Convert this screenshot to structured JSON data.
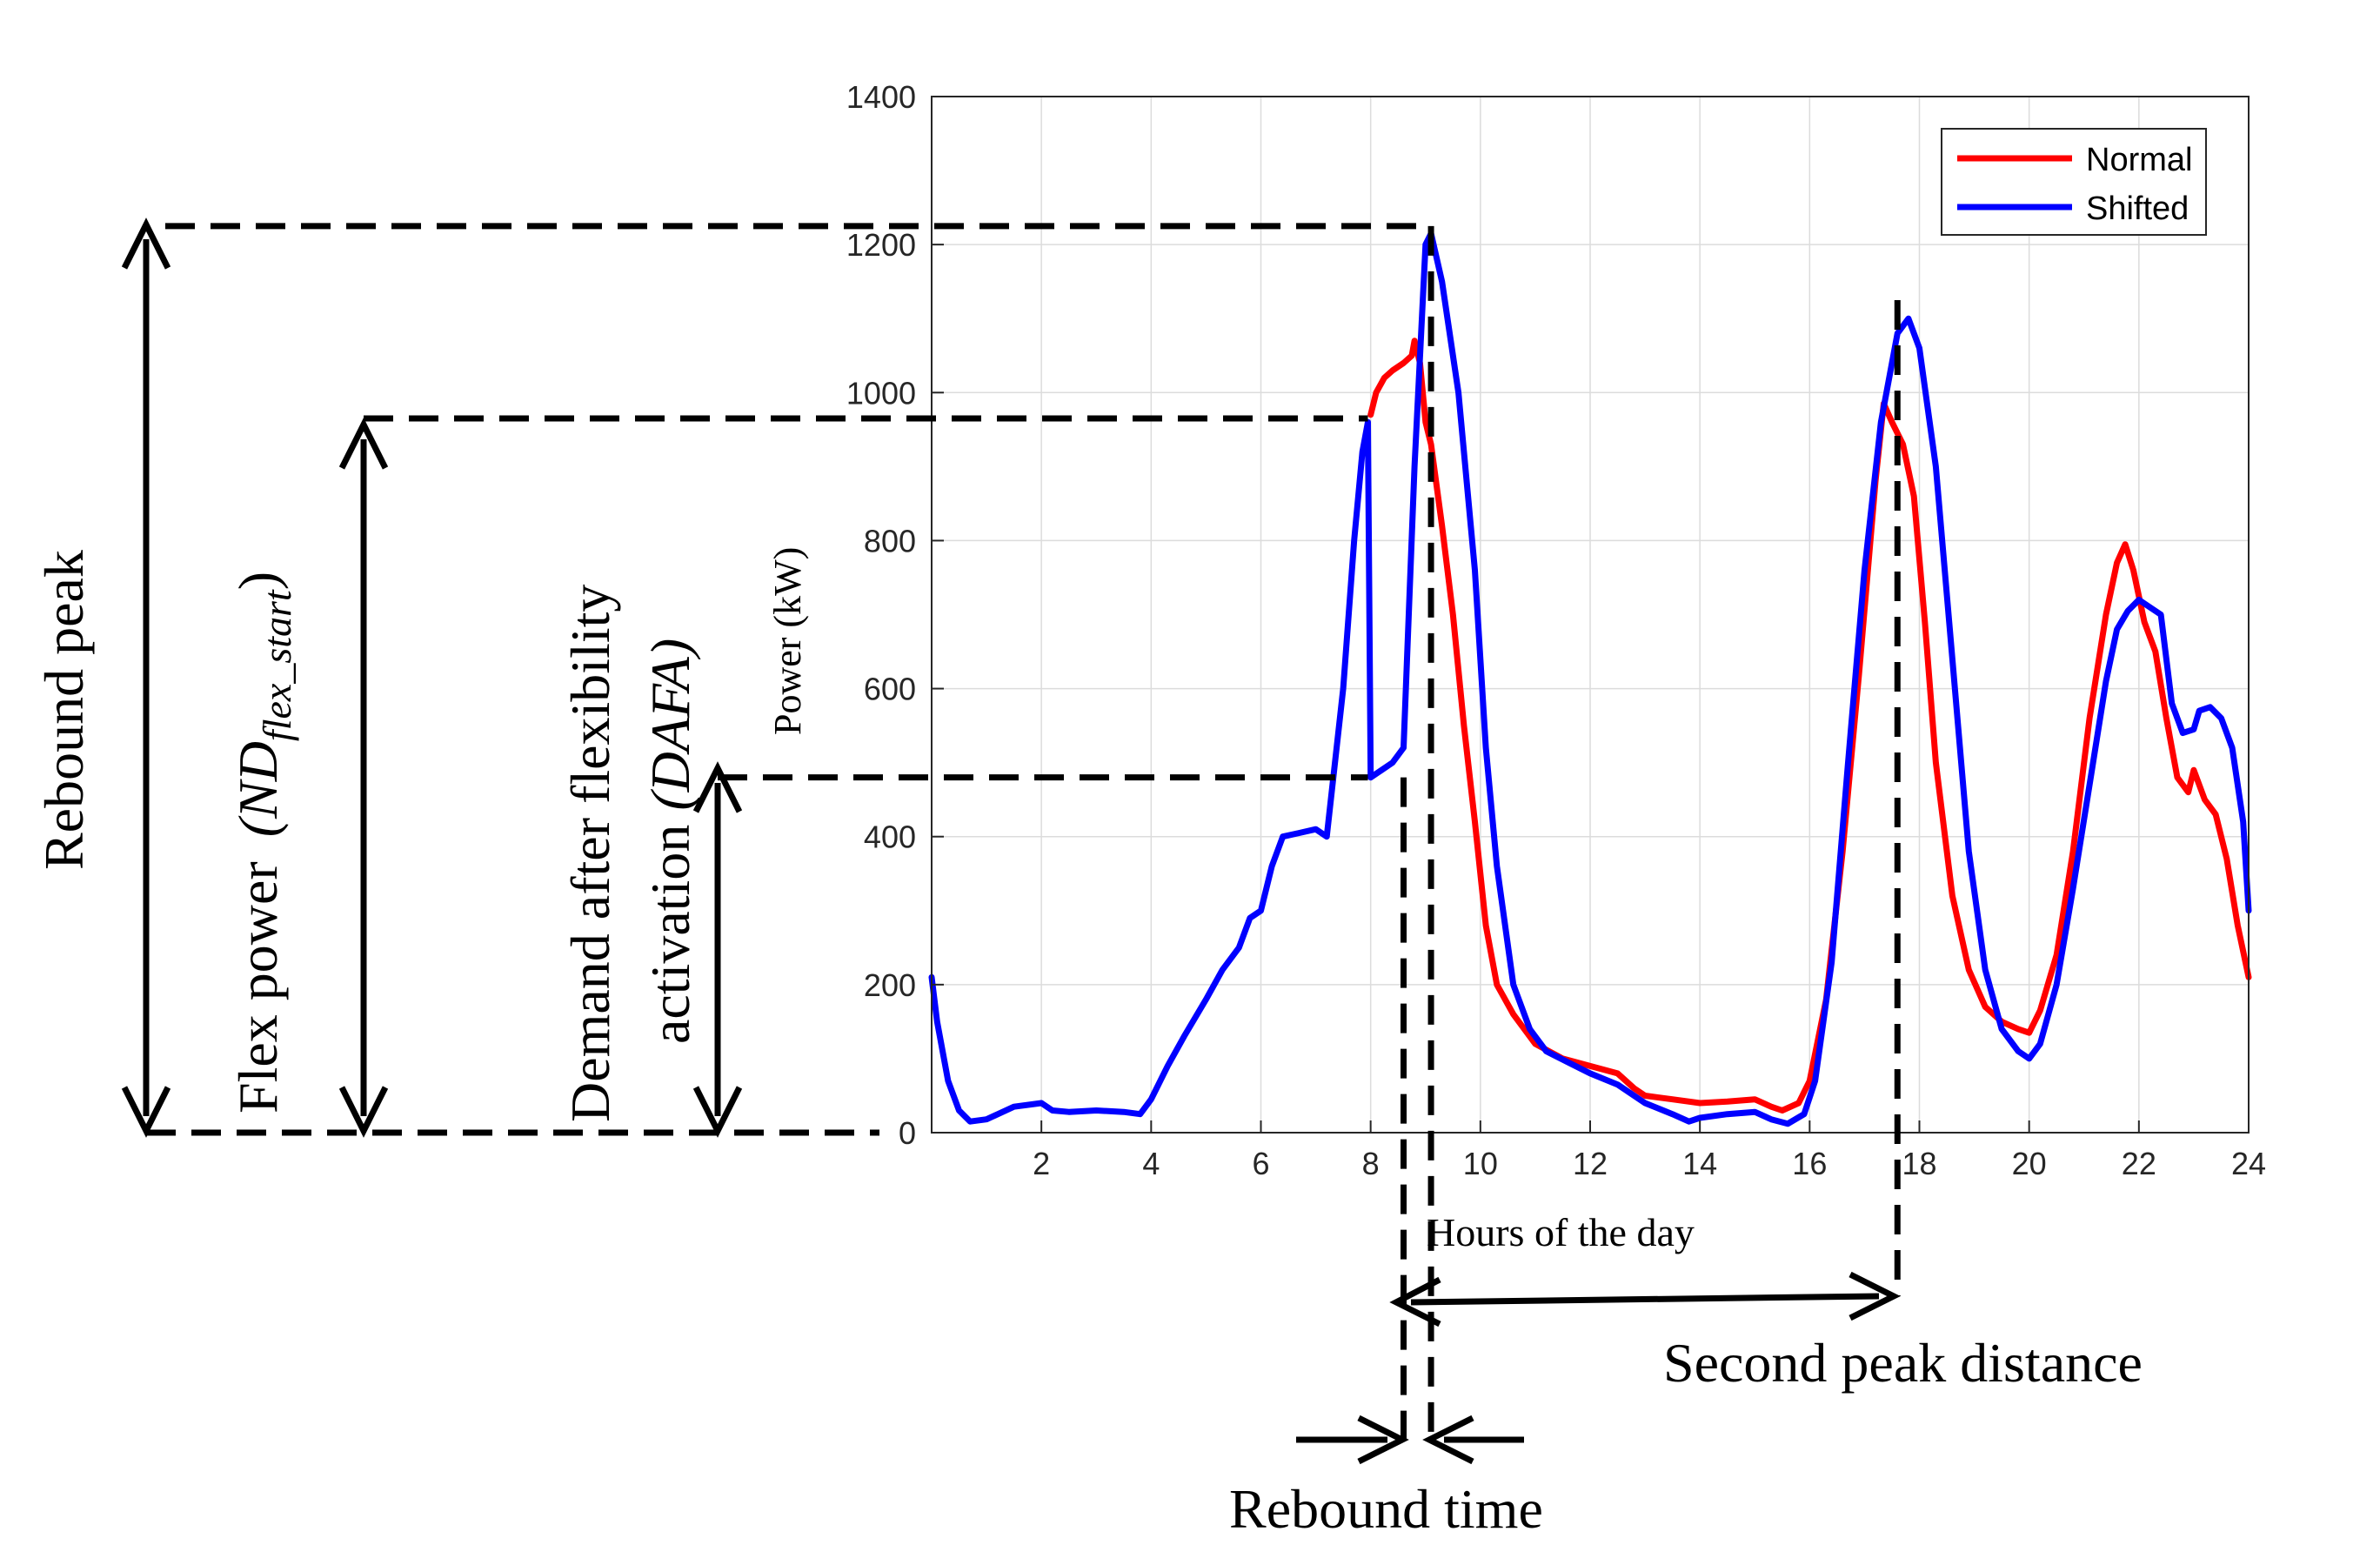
{
  "chart_data": {
    "type": "line",
    "xlabel": "Hours of the day",
    "ylabel": "Power (kW)",
    "xlim": [
      0,
      24
    ],
    "ylim": [
      0,
      1400
    ],
    "xticks": [
      2,
      4,
      6,
      8,
      10,
      12,
      14,
      16,
      18,
      20,
      22,
      24
    ],
    "yticks": [
      0,
      200,
      400,
      600,
      800,
      1000,
      1200,
      1400
    ],
    "grid": true,
    "legend_position": "top-right",
    "series": [
      {
        "name": "Normal",
        "color": "#ff0000",
        "points": [
          [
            8.0,
            970
          ],
          [
            8.1,
            1000
          ],
          [
            8.25,
            1020
          ],
          [
            8.4,
            1030
          ],
          [
            8.6,
            1040
          ],
          [
            8.75,
            1050
          ],
          [
            8.8,
            1070
          ],
          [
            8.9,
            1040
          ],
          [
            9.0,
            960
          ],
          [
            9.1,
            930
          ],
          [
            9.3,
            820
          ],
          [
            9.5,
            700
          ],
          [
            9.7,
            550
          ],
          [
            9.9,
            420
          ],
          [
            10.1,
            280
          ],
          [
            10.3,
            200
          ],
          [
            10.6,
            160
          ],
          [
            11.0,
            120
          ],
          [
            11.5,
            100
          ],
          [
            12.0,
            90
          ],
          [
            12.5,
            80
          ],
          [
            12.8,
            60
          ],
          [
            13.0,
            50
          ],
          [
            13.5,
            45
          ],
          [
            14.0,
            40
          ],
          [
            14.5,
            42
          ],
          [
            15.0,
            45
          ],
          [
            15.3,
            35
          ],
          [
            15.5,
            30
          ],
          [
            15.8,
            40
          ],
          [
            16.0,
            70
          ],
          [
            16.3,
            180
          ],
          [
            16.6,
            380
          ],
          [
            16.9,
            620
          ],
          [
            17.2,
            880
          ],
          [
            17.35,
            985
          ],
          [
            17.5,
            960
          ],
          [
            17.7,
            930
          ],
          [
            17.9,
            860
          ],
          [
            18.1,
            690
          ],
          [
            18.3,
            500
          ],
          [
            18.6,
            320
          ],
          [
            18.9,
            220
          ],
          [
            19.2,
            170
          ],
          [
            19.5,
            150
          ],
          [
            19.8,
            140
          ],
          [
            20.0,
            135
          ],
          [
            20.2,
            165
          ],
          [
            20.5,
            240
          ],
          [
            20.8,
            380
          ],
          [
            21.1,
            560
          ],
          [
            21.4,
            700
          ],
          [
            21.6,
            770
          ],
          [
            21.75,
            795
          ],
          [
            21.9,
            760
          ],
          [
            22.1,
            690
          ],
          [
            22.3,
            650
          ],
          [
            22.5,
            560
          ],
          [
            22.7,
            480
          ],
          [
            22.9,
            460
          ],
          [
            23.0,
            490
          ],
          [
            23.2,
            450
          ],
          [
            23.4,
            430
          ],
          [
            23.6,
            370
          ],
          [
            23.8,
            280
          ],
          [
            24.0,
            210
          ]
        ]
      },
      {
        "name": "Shifted",
        "color": "#0000ff",
        "points": [
          [
            0.0,
            210
          ],
          [
            0.1,
            150
          ],
          [
            0.3,
            70
          ],
          [
            0.5,
            30
          ],
          [
            0.7,
            15
          ],
          [
            1.0,
            18
          ],
          [
            1.5,
            35
          ],
          [
            2.0,
            40
          ],
          [
            2.2,
            30
          ],
          [
            2.5,
            28
          ],
          [
            3.0,
            30
          ],
          [
            3.5,
            28
          ],
          [
            3.8,
            25
          ],
          [
            4.0,
            45
          ],
          [
            4.3,
            90
          ],
          [
            4.6,
            130
          ],
          [
            5.0,
            180
          ],
          [
            5.3,
            220
          ],
          [
            5.6,
            250
          ],
          [
            5.8,
            290
          ],
          [
            6.0,
            300
          ],
          [
            6.2,
            360
          ],
          [
            6.4,
            400
          ],
          [
            6.7,
            405
          ],
          [
            7.0,
            410
          ],
          [
            7.2,
            400
          ],
          [
            7.5,
            600
          ],
          [
            7.7,
            800
          ],
          [
            7.85,
            920
          ],
          [
            7.95,
            960
          ],
          [
            8.0,
            480
          ],
          [
            8.2,
            490
          ],
          [
            8.4,
            500
          ],
          [
            8.6,
            520
          ],
          [
            8.8,
            900
          ],
          [
            9.0,
            1200
          ],
          [
            9.1,
            1215
          ],
          [
            9.3,
            1150
          ],
          [
            9.6,
            1000
          ],
          [
            9.9,
            760
          ],
          [
            10.1,
            520
          ],
          [
            10.3,
            360
          ],
          [
            10.6,
            200
          ],
          [
            10.9,
            140
          ],
          [
            11.2,
            110
          ],
          [
            11.6,
            95
          ],
          [
            12.0,
            80
          ],
          [
            12.5,
            65
          ],
          [
            13.0,
            40
          ],
          [
            13.5,
            25
          ],
          [
            13.8,
            15
          ],
          [
            14.0,
            20
          ],
          [
            14.5,
            25
          ],
          [
            15.0,
            28
          ],
          [
            15.3,
            18
          ],
          [
            15.6,
            12
          ],
          [
            15.9,
            25
          ],
          [
            16.1,
            70
          ],
          [
            16.4,
            230
          ],
          [
            16.7,
            500
          ],
          [
            17.0,
            760
          ],
          [
            17.3,
            960
          ],
          [
            17.6,
            1080
          ],
          [
            17.8,
            1100
          ],
          [
            18.0,
            1060
          ],
          [
            18.3,
            900
          ],
          [
            18.6,
            640
          ],
          [
            18.9,
            380
          ],
          [
            19.2,
            220
          ],
          [
            19.5,
            140
          ],
          [
            19.8,
            110
          ],
          [
            20.0,
            100
          ],
          [
            20.2,
            120
          ],
          [
            20.5,
            200
          ],
          [
            20.8,
            330
          ],
          [
            21.1,
            470
          ],
          [
            21.4,
            610
          ],
          [
            21.6,
            680
          ],
          [
            21.8,
            705
          ],
          [
            22.0,
            720
          ],
          [
            22.2,
            710
          ],
          [
            22.4,
            700
          ],
          [
            22.6,
            580
          ],
          [
            22.8,
            540
          ],
          [
            23.0,
            545
          ],
          [
            23.1,
            570
          ],
          [
            23.3,
            575
          ],
          [
            23.5,
            560
          ],
          [
            23.7,
            520
          ],
          [
            23.9,
            420
          ],
          [
            24.0,
            300
          ]
        ]
      }
    ]
  },
  "annotations": {
    "rebound_peak": "Rebound peak",
    "flex_power": "Flex power",
    "flex_symbol": "(ND",
    "flex_subscript": "flex_start",
    "flex_close": ")",
    "dafa_line1": "Demand after flexibility",
    "dafa_line2_prefix": "activation ",
    "dafa_line2_symbol": "(DAFA)",
    "second_peak_distance": "Second peak distance",
    "rebound_time": "Rebound time"
  },
  "reference_levels": {
    "rebound_peak_kw": 1225,
    "flex_start_kw": 965,
    "dafa_kw": 480,
    "flex_start_hour": 7.95,
    "dafa_hour": 8.6,
    "rebound_peak_hour": 9.1,
    "second_peak_hour": 17.6
  }
}
